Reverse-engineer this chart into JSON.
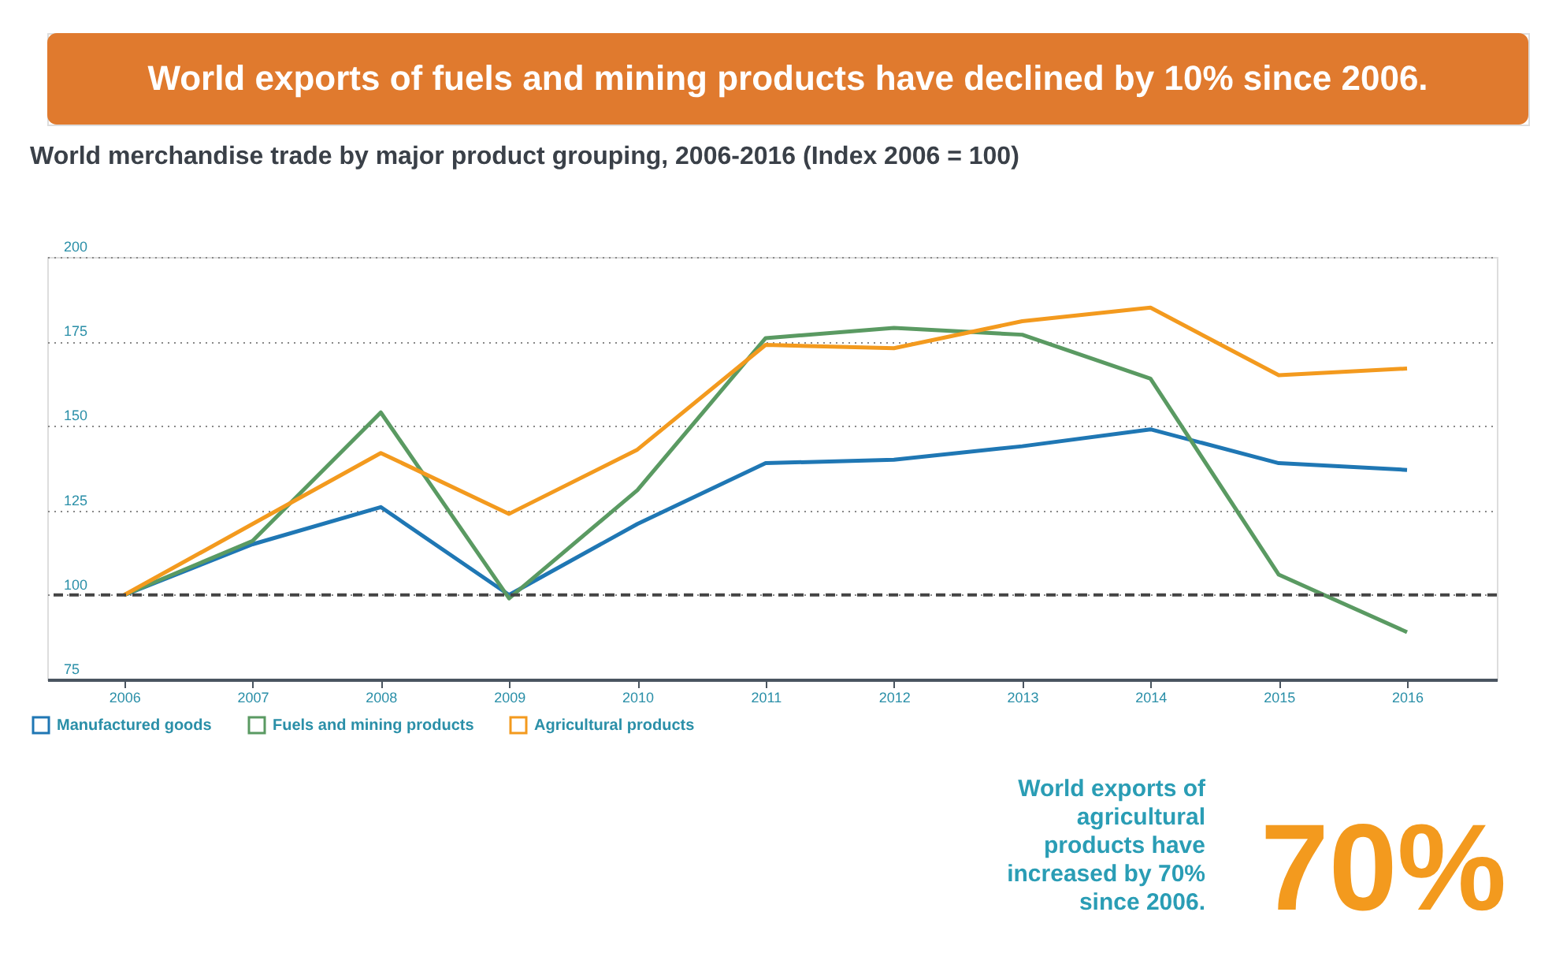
{
  "chart_data": {
    "type": "line",
    "title": "World exports of fuels and mining products have declined by 10% since 2006.",
    "subtitle": "World merchandise trade by major product grouping, 2006-2016 (Index 2006 = 100)",
    "categories": [
      "2006",
      "2007",
      "2008",
      "2009",
      "2010",
      "2011",
      "2012",
      "2013",
      "2014",
      "2015",
      "2016"
    ],
    "series": [
      {
        "name": "Manufactured goods",
        "color": "#1f77b4",
        "values": [
          100,
          115,
          126,
          100,
          121,
          139,
          140,
          144,
          149,
          139,
          137
        ]
      },
      {
        "name": "Fuels and mining products",
        "color": "#5a9a62",
        "values": [
          100,
          116,
          154,
          99,
          131,
          176,
          179,
          177,
          164,
          106,
          89
        ]
      },
      {
        "name": "Agricultural products",
        "color": "#f39a1e",
        "values": [
          100,
          121,
          142,
          124,
          143,
          174,
          173,
          181,
          185,
          165,
          167
        ]
      }
    ],
    "ylim": [
      75,
      200
    ],
    "yticks": [
      75,
      100,
      125,
      150,
      175,
      200
    ],
    "grid": "y",
    "legend": "bottom left",
    "marker": "none",
    "line_style": "solid",
    "ref_lines": [
      {
        "axis": "y",
        "value": 100,
        "color": "#444444",
        "line_style": "dashed"
      }
    ],
    "annotations": [
      "World exports of agricultural products have increased by 70% since 2006.",
      "70%"
    ]
  }
}
